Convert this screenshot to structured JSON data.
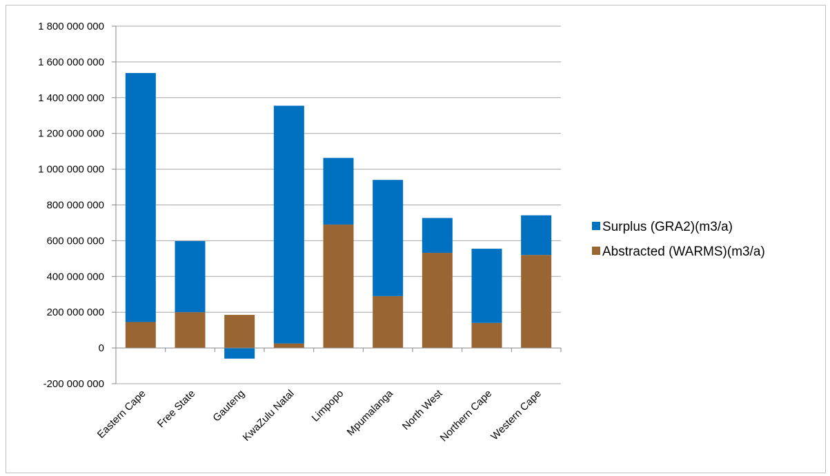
{
  "chart_data": {
    "type": "bar",
    "stacked": true,
    "title": "",
    "xlabel": "",
    "ylabel": "",
    "categories": [
      "Eastern Cape",
      "Free State",
      "Gauteng",
      "KwaZulu Natal",
      "Limpopo",
      "Mpumalanga",
      "North West",
      "Northern Cape",
      "Western Cape"
    ],
    "series": [
      {
        "name": "Abstracted (WARMS)(m3/a)",
        "color": "#996633",
        "values": [
          145000000,
          200000000,
          185000000,
          25000000,
          690000000,
          290000000,
          532000000,
          140000000,
          520000000
        ]
      },
      {
        "name": "Surplus (GRA2)(m3/a)",
        "color": "#0070c0",
        "values": [
          1393000000,
          398000000,
          -60000000,
          1330000000,
          373000000,
          650000000,
          195000000,
          415000000,
          222000000
        ]
      }
    ],
    "ylim": [
      -200000000,
      1800000000
    ],
    "yticks": [
      -200000000,
      0,
      200000000,
      400000000,
      600000000,
      800000000,
      1000000000,
      1200000000,
      1400000000,
      1600000000,
      1800000000
    ],
    "ytick_labels": [
      "-200 000 000",
      "0",
      "200 000 000",
      "400 000 000",
      "600 000 000",
      "800 000 000",
      "1 000 000 000",
      "1 200 000 000",
      "1 400 000 000",
      "1 600 000 000",
      "1 800 000 000"
    ],
    "grid": true,
    "legend_position": "right",
    "legend_order": [
      "Surplus (GRA2)(m3/a)",
      "Abstracted (WARMS)(m3/a)"
    ]
  }
}
